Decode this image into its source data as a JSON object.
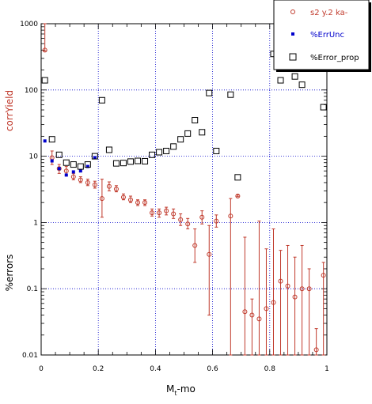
{
  "chart_data": {
    "type": "scatter",
    "xlabel": "M_t-mo",
    "xlabel_main": "M",
    "xlabel_sub": "t",
    "xlabel_rest": "-mo",
    "ylabel_red": "corrYield",
    "ylabel_black": "%errors",
    "xlim": [
      0,
      1
    ],
    "ylim": [
      0.01,
      1000
    ],
    "yscale": "log",
    "grid": true,
    "legend_position": "top-right",
    "x_ticks": [
      "0",
      "0.2",
      "0.4",
      "0.6",
      "0.8",
      "1"
    ],
    "y_ticks": [
      "0.01",
      "0.1",
      "1",
      "10",
      "100",
      "1000"
    ],
    "series": [
      {
        "name": "s2 y.2 ka-",
        "color": "#c0392b",
        "marker": "open-circle",
        "x": [
          0.013,
          0.038,
          0.063,
          0.088,
          0.113,
          0.138,
          0.163,
          0.188,
          0.213,
          0.238,
          0.263,
          0.288,
          0.313,
          0.338,
          0.363,
          0.388,
          0.413,
          0.438,
          0.463,
          0.488,
          0.513,
          0.538,
          0.563,
          0.588,
          0.613,
          0.663,
          0.688,
          0.713,
          0.738,
          0.763,
          0.788,
          0.813,
          0.838,
          0.863,
          0.888,
          0.913,
          0.938,
          0.963,
          0.988
        ],
        "y": [
          400,
          9.5,
          6.5,
          6.0,
          4.9,
          4.4,
          4.0,
          3.7,
          2.3,
          3.5,
          3.2,
          2.4,
          2.2,
          2.0,
          2.0,
          1.4,
          1.4,
          1.5,
          1.35,
          1.1,
          0.95,
          0.45,
          1.2,
          0.33,
          1.05,
          1.25,
          2.5,
          0.045,
          0.04,
          0.035,
          0.05,
          0.062,
          0.13,
          0.11,
          0.075,
          0.1,
          0.1,
          0.012,
          0.16
        ],
        "err_lo": [
          390,
          7.5,
          5.5,
          5.2,
          4.4,
          4.0,
          3.6,
          3.3,
          1.2,
          3.0,
          2.9,
          2.2,
          2.0,
          1.8,
          1.8,
          1.25,
          1.2,
          1.3,
          1.15,
          0.9,
          0.8,
          0.25,
          0.95,
          0.04,
          0.85,
          0.01,
          2.45,
          0.01,
          0.01,
          0.01,
          0.01,
          0.01,
          0.01,
          0.01,
          0.01,
          0.01,
          0.01,
          0.01,
          0.01
        ],
        "err_hi": [
          1000,
          12,
          7.5,
          7.0,
          5.5,
          4.9,
          4.5,
          4.2,
          4.5,
          4.1,
          3.6,
          2.7,
          2.5,
          2.2,
          2.2,
          1.6,
          1.6,
          1.7,
          1.6,
          1.35,
          1.15,
          0.8,
          1.5,
          0.9,
          1.3,
          2.3,
          2.6,
          0.6,
          0.07,
          1.05,
          0.4,
          0.8,
          0.38,
          0.45,
          0.3,
          0.45,
          0.2,
          0.025,
          0.25
        ]
      },
      {
        "name": "%ErrUnc",
        "color": "#0000cc",
        "marker": "filled-square",
        "x": [
          0.013,
          0.038,
          0.063,
          0.088,
          0.113,
          0.138,
          0.163,
          0.188
        ],
        "y": [
          17,
          8.5,
          6.5,
          5.2,
          5.8,
          6.0,
          7.0,
          9.5
        ]
      },
      {
        "name": "%Error_prop",
        "color": "#000000",
        "marker": "open-square",
        "x": [
          0.013,
          0.038,
          0.063,
          0.088,
          0.113,
          0.138,
          0.163,
          0.188,
          0.213,
          0.238,
          0.263,
          0.288,
          0.313,
          0.338,
          0.363,
          0.388,
          0.413,
          0.438,
          0.463,
          0.488,
          0.513,
          0.538,
          0.563,
          0.588,
          0.613,
          0.663,
          0.688,
          0.813,
          0.838,
          0.888,
          0.913,
          0.988
        ],
        "y": [
          140,
          18,
          10.5,
          8.0,
          7.5,
          7.0,
          7.5,
          10.0,
          70,
          12.5,
          7.8,
          7.9,
          8.3,
          8.5,
          8.4,
          10.5,
          11.5,
          12,
          14,
          18,
          22,
          35,
          23,
          90,
          12,
          85,
          4.8,
          350,
          140,
          160,
          120,
          55
        ]
      }
    ]
  }
}
